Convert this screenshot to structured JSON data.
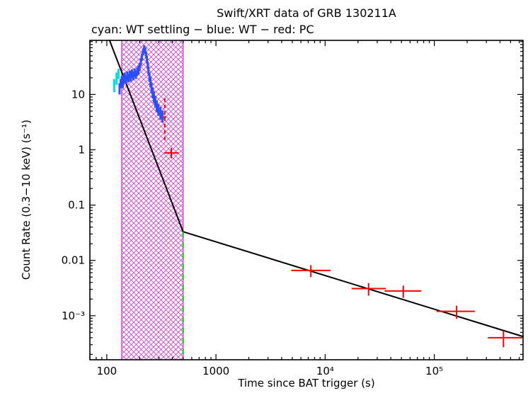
{
  "window": {
    "background": "#ffffff"
  },
  "chart_data": {
    "type": "scatter",
    "title": "Swift/XRT data of GRB 130211A",
    "subtitle": "cyan: WT settling − blue: WT − red: PC",
    "xlabel": "Time since BAT trigger (s)",
    "ylabel": "Count Rate (0.3−10 keV) (s⁻¹)",
    "x_scale": "log",
    "y_scale": "log",
    "xlim": [
      70,
      650000
    ],
    "ylim": [
      0.00016,
      95
    ],
    "grid": false,
    "legend_position": "top-left-text-line",
    "x_ticks": [
      {
        "value": 100,
        "label": "100"
      },
      {
        "value": 1000,
        "label": "1000"
      },
      {
        "value": 10000,
        "label": "10⁴"
      },
      {
        "value": 100000,
        "label": "10⁵"
      }
    ],
    "y_ticks": [
      {
        "value": 0.001,
        "label": "10⁻³"
      },
      {
        "value": 0.01,
        "label": "0.01"
      },
      {
        "value": 0.1,
        "label": "0.1"
      },
      {
        "value": 1,
        "label": "1"
      },
      {
        "value": 10,
        "label": "10"
      }
    ],
    "band": {
      "comment": "magenta cross-hatched vertical band",
      "color": "#d040d0",
      "x_from": 137,
      "x_to": 500
    },
    "break_line": {
      "comment": "green dashed vertical line at light-curve break",
      "color": "#00cc00",
      "x": 500,
      "rate_top": 0.033
    },
    "model": {
      "color": "#000000",
      "width": 2,
      "segments": [
        [
          [
            106,
            95
          ],
          [
            500,
            0.033
          ]
        ],
        [
          [
            500,
            0.033
          ],
          [
            650000,
            0.00042
          ]
        ]
      ]
    },
    "series": [
      {
        "key": "wt-settling",
        "name": "WT settling",
        "color": "#00dede",
        "width": 3,
        "dash": false,
        "points": [
          [
            117,
            15,
            4,
            4,
            3,
            3
          ],
          [
            123,
            20,
            5,
            5,
            3,
            3
          ],
          [
            128,
            24,
            5,
            5,
            2,
            2
          ]
        ]
      },
      {
        "key": "wt",
        "name": "WT",
        "color": "#2b4fff",
        "width": 3,
        "dash": false,
        "points": [
          [
            131,
            13,
            3,
            3,
            2,
            2
          ],
          [
            134,
            16,
            3,
            3,
            2,
            2
          ],
          [
            137,
            18,
            3.5,
            3.5,
            2,
            2
          ],
          [
            140,
            16,
            3,
            3,
            2,
            2
          ],
          [
            143,
            19,
            3.5,
            3.5,
            2,
            2
          ],
          [
            146,
            21,
            4,
            4,
            2,
            2
          ],
          [
            150,
            19,
            3.5,
            3.5,
            2,
            2
          ],
          [
            154,
            22,
            4,
            4,
            2,
            2
          ],
          [
            158,
            20,
            3.5,
            3.5,
            2,
            2
          ],
          [
            162,
            23,
            4,
            4,
            2,
            2
          ],
          [
            166,
            21,
            4,
            4,
            2,
            2
          ],
          [
            170,
            24,
            4.5,
            4.5,
            2,
            2
          ],
          [
            175,
            22,
            4,
            4,
            2,
            2
          ],
          [
            180,
            25,
            4.5,
            4.5,
            2,
            2
          ],
          [
            185,
            23,
            4,
            4,
            2,
            2
          ],
          [
            190,
            26,
            4.5,
            4.5,
            3,
            3
          ],
          [
            195,
            28,
            5,
            5,
            3,
            3
          ],
          [
            200,
            32,
            5.5,
            5.5,
            3,
            3
          ],
          [
            205,
            39,
            6,
            6,
            3,
            3
          ],
          [
            210,
            48,
            7,
            7,
            3,
            3
          ],
          [
            215,
            59,
            8,
            8,
            3,
            3
          ],
          [
            220,
            68,
            9,
            9,
            3,
            3
          ],
          [
            225,
            62,
            8,
            8,
            3,
            3
          ],
          [
            229,
            52,
            7,
            7,
            3,
            3
          ],
          [
            233,
            43,
            6.5,
            6.5,
            3,
            3
          ],
          [
            237,
            34,
            5.5,
            5.5,
            3,
            3
          ],
          [
            241,
            27,
            5,
            5,
            3,
            3
          ],
          [
            246,
            21,
            4,
            4,
            3,
            3
          ],
          [
            251,
            17,
            3.5,
            3.5,
            3,
            3
          ],
          [
            257,
            13.5,
            3,
            3,
            3,
            3
          ],
          [
            263,
            11,
            2.5,
            2.5,
            3,
            3
          ],
          [
            270,
            9.2,
            2.2,
            2.2,
            3,
            3
          ],
          [
            278,
            7.6,
            1.8,
            1.8,
            3,
            3
          ],
          [
            287,
            6.3,
            1.5,
            1.5,
            4,
            4
          ],
          [
            297,
            5.4,
            1.3,
            1.3,
            4,
            4
          ],
          [
            310,
            4.7,
            1.2,
            1.2,
            5,
            5
          ],
          [
            324,
            4.1,
            1,
            1,
            6,
            6
          ]
        ]
      },
      {
        "key": "pc-uncertain",
        "name": "PC (large uncertainty, dashed)",
        "color": "#ff0000",
        "width": 2,
        "dash": true,
        "points": [
          [
            340,
            3.9,
            2.4,
            4.6,
            10,
            10
          ]
        ]
      },
      {
        "key": "pc",
        "name": "PC",
        "color": "#ff0000",
        "width": 2,
        "dash": false,
        "points": [
          [
            390,
            0.88,
            0.18,
            0.2,
            55,
            65
          ],
          [
            7400,
            0.0066,
            0.0016,
            0.0016,
            2500,
            3800
          ],
          [
            25000,
            0.0031,
            0.0008,
            0.0008,
            7500,
            11000
          ],
          [
            52000,
            0.0028,
            0.0007,
            0.0007,
            17000,
            24000
          ],
          [
            160000,
            0.0012,
            0.00032,
            0.00032,
            55000,
            75000
          ],
          [
            430000,
            0.0004,
            0.00013,
            0.00013,
            120000,
            190000
          ]
        ]
      }
    ],
    "point_format": "[time_s, rate, rate_err_minus, rate_err_plus, time_err_minus, time_err_plus]"
  }
}
